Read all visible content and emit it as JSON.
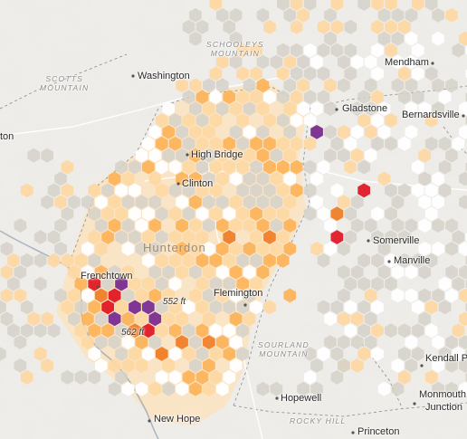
{
  "map": {
    "county_label": "Hunterdon",
    "regions": [
      {
        "name": "scotts-mountain",
        "line1": "SCOTTS",
        "line2": "MOUNTAIN"
      },
      {
        "name": "schooleys-mountain",
        "line1": "SCHOOLEYS",
        "line2": "MOUNTAIN"
      },
      {
        "name": "sourland-mountain",
        "line1": "SOURLAND",
        "line2": "MOUNTAIN"
      },
      {
        "name": "rocky-hill",
        "line1": "ROCKY HILL",
        "line2": ""
      }
    ],
    "towns": [
      "Washington",
      "Mendham",
      "Gladstone",
      "Bernardsville",
      "High Bridge",
      "Clinton",
      "Somerville",
      "Manville",
      "Frenchtown",
      "Flemington",
      "Hopewell",
      "New Hope",
      "Princeton",
      "Kendall P",
      "Monmouth",
      "Junction",
      "ton"
    ],
    "elevations": [
      "552 ft",
      "562 ft"
    ],
    "colors": {
      "background": "#efede9",
      "county_fill": "#fbe3bf",
      "hex_grey": "#d5d1c9",
      "hex_light_orange": "#fdd8a3",
      "hex_orange": "#fdb45c",
      "hex_dark_orange": "#f07f2a",
      "hex_red": "#e01a28",
      "hex_purple": "#7b2d8f",
      "hex_white": "#ffffff"
    }
  }
}
